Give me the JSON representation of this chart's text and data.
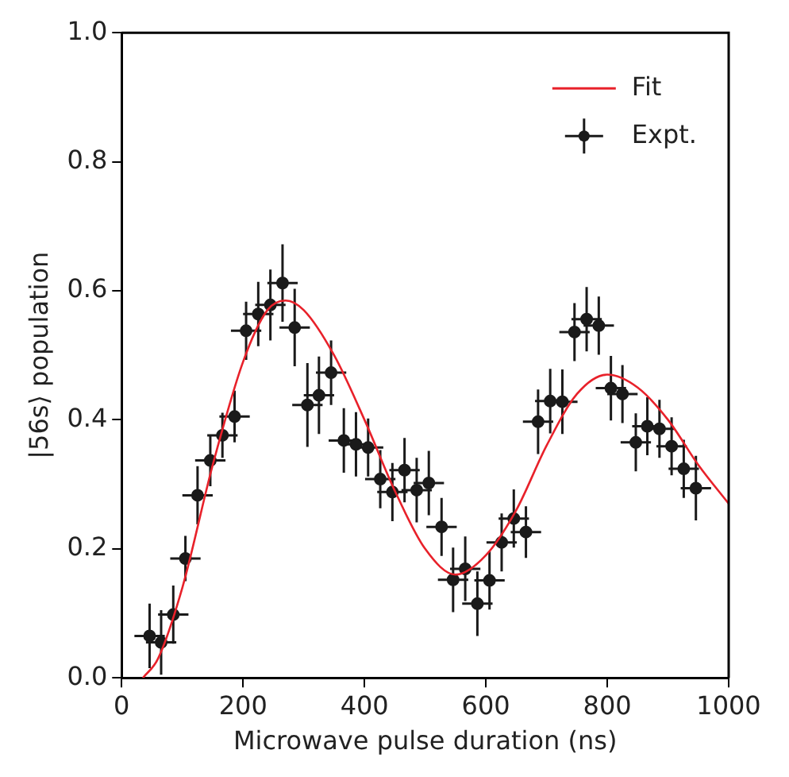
{
  "chart_data": {
    "type": "scatter",
    "xlabel": "Microwave pulse duration (ns)",
    "ylabel": "|56s⟩ population",
    "xlim": [
      0,
      1000
    ],
    "ylim": [
      0,
      1
    ],
    "xticks": [
      0,
      200,
      400,
      600,
      800,
      1000
    ],
    "yticks": [
      {
        "value": 0,
        "label": "0.0"
      },
      0.2,
      0.4,
      0.6,
      0.8,
      {
        "value": 1,
        "label": "1.0"
      }
    ],
    "grid": false,
    "legend": "top right",
    "series": [
      {
        "name": "Fit",
        "type": "line",
        "color": "#e8212a",
        "marker": "none",
        "line_style": "solid",
        "x": [
          35,
          60,
          100,
          150,
          200,
          240,
          270,
          300,
          350,
          400,
          450,
          500,
          550,
          600,
          650,
          700,
          750,
          800,
          850,
          900,
          950,
          1000
        ],
        "values": [
          0,
          0.03,
          0.14,
          0.33,
          0.49,
          0.57,
          0.585,
          0.57,
          0.5,
          0.4,
          0.29,
          0.2,
          0.16,
          0.19,
          0.26,
          0.36,
          0.44,
          0.47,
          0.45,
          0.4,
          0.33,
          0.27
        ]
      },
      {
        "name": "Expt.",
        "type": "scatter",
        "color": "#1a1a1a",
        "marker": "circle",
        "x": [
          46,
          65,
          85,
          105,
          125,
          146,
          166,
          186,
          205,
          225,
          245,
          265,
          285,
          306,
          325,
          345,
          366,
          386,
          406,
          426,
          446,
          466,
          486,
          506,
          527,
          546,
          566,
          586,
          606,
          626,
          646,
          666,
          686,
          706,
          726,
          746,
          766,
          786,
          806,
          825,
          847,
          866,
          886,
          906,
          926,
          946
        ],
        "values": [
          0.065,
          0.055,
          0.098,
          0.185,
          0.283,
          0.337,
          0.376,
          0.405,
          0.538,
          0.564,
          0.578,
          0.612,
          0.543,
          0.423,
          0.438,
          0.473,
          0.368,
          0.362,
          0.357,
          0.308,
          0.288,
          0.322,
          0.291,
          0.302,
          0.234,
          0.152,
          0.169,
          0.115,
          0.151,
          0.21,
          0.247,
          0.226,
          0.397,
          0.429,
          0.428,
          0.536,
          0.556,
          0.546,
          0.449,
          0.44,
          0.365,
          0.39,
          0.386,
          0.359,
          0.324,
          0.294
        ],
        "errors": [
          0.05,
          0.05,
          0.045,
          0.035,
          0.045,
          0.04,
          0.035,
          0.04,
          0.045,
          0.05,
          0.055,
          0.06,
          0.06,
          0.065,
          0.06,
          0.05,
          0.05,
          0.05,
          0.045,
          0.045,
          0.045,
          0.05,
          0.05,
          0.05,
          0.045,
          0.05,
          0.05,
          0.05,
          0.045,
          0.045,
          0.045,
          0.04,
          0.05,
          0.05,
          0.05,
          0.045,
          0.05,
          0.045,
          0.05,
          0.045,
          0.045,
          0.045,
          0.045,
          0.045,
          0.045,
          0.05
        ],
        "xerrors": [
          25,
          25,
          25,
          25,
          25,
          25,
          25,
          25,
          25,
          25,
          25,
          25,
          25,
          25,
          25,
          25,
          25,
          25,
          25,
          25,
          25,
          25,
          25,
          25,
          25,
          25,
          25,
          25,
          25,
          25,
          25,
          25,
          25,
          25,
          25,
          25,
          25,
          25,
          25,
          25,
          25,
          25,
          25,
          25,
          25,
          25
        ]
      }
    ]
  }
}
